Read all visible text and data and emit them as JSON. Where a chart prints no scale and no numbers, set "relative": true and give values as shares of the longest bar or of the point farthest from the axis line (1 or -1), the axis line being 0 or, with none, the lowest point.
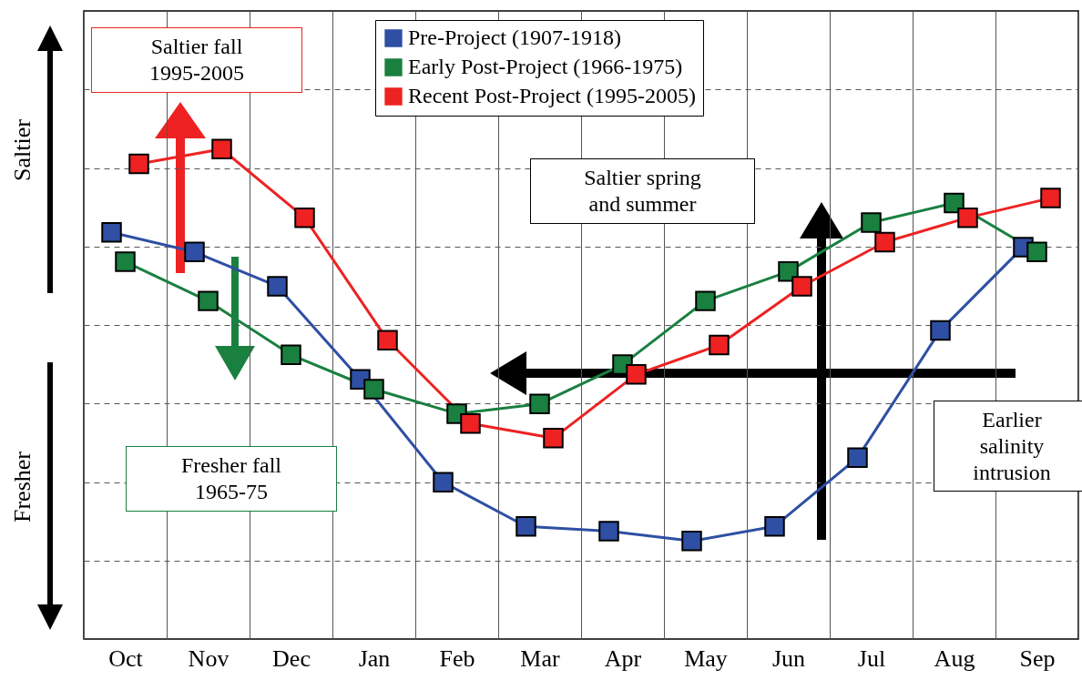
{
  "chart_data": {
    "type": "line",
    "relative": true,
    "marker": "square",
    "line_style": "solid",
    "grid": true,
    "legend": "top",
    "categories": [
      "Oct",
      "Nov",
      "Dec",
      "Jan",
      "Feb",
      "Mar",
      "Apr",
      "May",
      "Jun",
      "Jul",
      "Aug",
      "Sep"
    ],
    "series": [
      {
        "name": "Pre-Project (1907-1918)",
        "color": "#2e4fa3",
        "values": [
          0.83,
          0.79,
          0.72,
          0.53,
          0.32,
          0.23,
          0.22,
          0.2,
          0.23,
          0.37,
          0.63,
          0.8
        ]
      },
      {
        "name": "Early Post-Project (1966-1975)",
        "color": "#1a8040",
        "values": [
          0.77,
          0.69,
          0.58,
          0.51,
          0.46,
          0.48,
          0.56,
          0.69,
          0.75,
          0.85,
          0.89,
          0.79
        ]
      },
      {
        "name": "Recent Post-Project (1995-2005)",
        "color": "#ee2222",
        "values": [
          0.97,
          1,
          0.86,
          0.61,
          0.44,
          0.41,
          0.54,
          0.6,
          0.72,
          0.81,
          0.86,
          0.9
        ]
      }
    ],
    "annotations": [
      "Saltier",
      "Fresher",
      "Saltier fall\n1995-2005",
      "Fresher fall\n1965-75",
      "Saltier spring\nand summer",
      "Earlier\nsalinity\nintrusion"
    ]
  }
}
